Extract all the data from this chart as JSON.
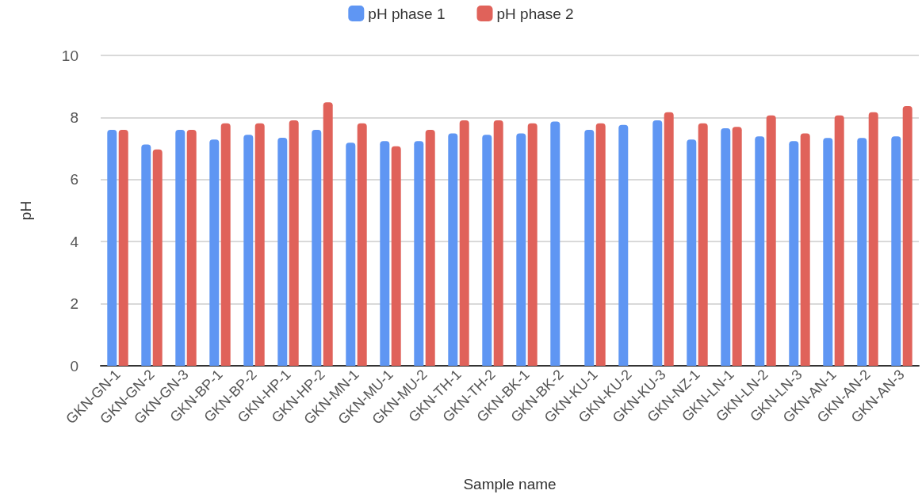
{
  "chart_data": {
    "type": "bar",
    "xlabel": "Sample name",
    "ylabel": "pH",
    "categories": [
      "GKN-GN-1",
      "GKN-GN-2",
      "GKN-GN-3",
      "GKN-BP-1",
      "GKN-BP-2",
      "GKN-HP-1",
      "GKN-HP-2",
      "GKN-MN-1",
      "GKN-MU-1",
      "GKN-MU-2",
      "GKN-TH-1",
      "GKN-TH-2",
      "GKN-BK-1",
      "GKN-BK-2",
      "GKN-KU-1",
      "GKN-KU-2",
      "GKN-KU-3",
      "GKN-NZ-1",
      "GKN-LN-1",
      "GKN-LN-2",
      "GKN-LN-3",
      "GKN-AN-1",
      "GKN-AN-2",
      "GKN-AN-3"
    ],
    "series": [
      {
        "name": "pH phase 1",
        "color": "#5f96f3",
        "values": [
          7.6,
          7.13,
          7.6,
          7.29,
          7.44,
          7.35,
          7.6,
          7.19,
          7.24,
          7.24,
          7.49,
          7.44,
          7.49,
          7.87,
          7.6,
          7.76,
          7.91,
          7.29,
          7.65,
          7.39,
          7.24,
          7.34,
          7.34,
          7.39
        ]
      },
      {
        "name": "pH phase 2",
        "color": "#e0625a",
        "values": [
          7.6,
          6.97,
          7.6,
          7.81,
          7.81,
          7.91,
          8.49,
          7.81,
          7.07,
          7.6,
          7.91,
          7.91,
          7.81,
          null,
          7.81,
          null,
          8.17,
          7.81,
          7.7,
          8.07,
          7.49,
          8.07,
          8.17,
          8.37
        ]
      }
    ],
    "ylim": [
      0,
      10
    ],
    "yticks": [
      0,
      2,
      4,
      6,
      8,
      10
    ],
    "grid": "y",
    "legend": "top"
  }
}
